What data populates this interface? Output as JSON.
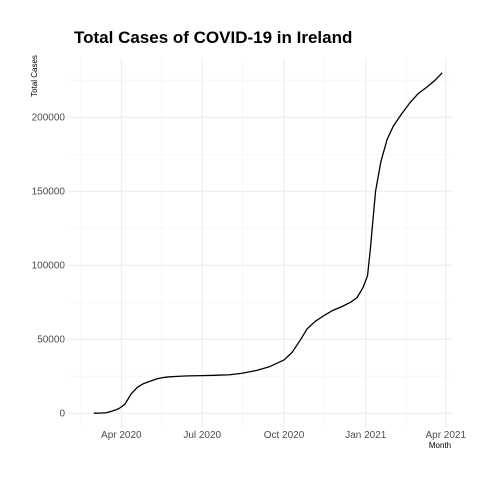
{
  "chart_data": {
    "type": "line",
    "title": "Total Cases of COVID-19 in Ireland",
    "xlabel": "Month",
    "ylabel": "Total Cases",
    "grid": true,
    "legend": "none",
    "x_tick_labels": [
      "Apr 2020",
      "Jul 2020",
      "Oct 2020",
      "Jan 2021",
      "Apr 2021"
    ],
    "x_ticks": [
      "2020-04-01",
      "2020-07-01",
      "2020-10-01",
      "2021-01-01",
      "2021-04-01"
    ],
    "y_ticks": [
      0,
      50000,
      100000,
      150000,
      200000
    ],
    "y_tick_labels": [
      "0",
      "50000",
      "100000",
      "150000",
      "200000"
    ],
    "xlim": [
      "2020-02-01",
      "2021-04-08"
    ],
    "ylim": [
      -10000,
      240000
    ],
    "series": [
      {
        "color": "#000000",
        "points": [
          [
            "2020-03-01",
            0
          ],
          [
            "2020-03-08",
            50
          ],
          [
            "2020-03-15",
            300
          ],
          [
            "2020-03-22",
            1500
          ],
          [
            "2020-03-29",
            3000
          ],
          [
            "2020-04-05",
            6000
          ],
          [
            "2020-04-12",
            13000
          ],
          [
            "2020-04-19",
            17500
          ],
          [
            "2020-04-26",
            20000
          ],
          [
            "2020-05-03",
            21500
          ],
          [
            "2020-05-10",
            23000
          ],
          [
            "2020-05-17",
            24000
          ],
          [
            "2020-05-24",
            24500
          ],
          [
            "2020-05-31",
            24800
          ],
          [
            "2020-06-15",
            25200
          ],
          [
            "2020-07-01",
            25400
          ],
          [
            "2020-07-15",
            25600
          ],
          [
            "2020-08-01",
            26000
          ],
          [
            "2020-08-15",
            27000
          ],
          [
            "2020-09-01",
            29000
          ],
          [
            "2020-09-15",
            31500
          ],
          [
            "2020-10-01",
            36000
          ],
          [
            "2020-10-10",
            41000
          ],
          [
            "2020-10-20",
            50000
          ],
          [
            "2020-10-27",
            57000
          ],
          [
            "2020-11-05",
            62000
          ],
          [
            "2020-11-15",
            66000
          ],
          [
            "2020-11-25",
            69500
          ],
          [
            "2020-12-05",
            72000
          ],
          [
            "2020-12-15",
            75000
          ],
          [
            "2020-12-22",
            78000
          ],
          [
            "2020-12-29",
            85000
          ],
          [
            "2021-01-03",
            93000
          ],
          [
            "2021-01-06",
            110000
          ],
          [
            "2021-01-09",
            130000
          ],
          [
            "2021-01-12",
            150000
          ],
          [
            "2021-01-18",
            170000
          ],
          [
            "2021-01-25",
            185000
          ],
          [
            "2021-02-01",
            194000
          ],
          [
            "2021-02-10",
            202000
          ],
          [
            "2021-02-20",
            210000
          ],
          [
            "2021-03-01",
            216000
          ],
          [
            "2021-03-10",
            220000
          ],
          [
            "2021-03-20",
            225000
          ],
          [
            "2021-03-28",
            230000
          ]
        ]
      }
    ]
  }
}
